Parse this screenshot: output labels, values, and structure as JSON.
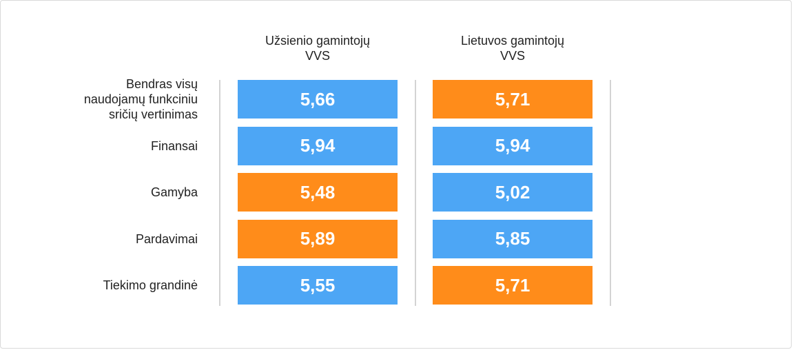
{
  "chart_data": {
    "type": "table",
    "columns": [
      "Užsienio gamintojų\nVVS",
      "Lietuvos gamintojų\nVVS"
    ],
    "rows": [
      {
        "label": "Bendras visų\nnaudojamų funkciniu\nsričių vertinimas",
        "values": [
          "5,66",
          "5,71"
        ],
        "highlight": [
          "blue",
          "orange"
        ]
      },
      {
        "label": "Finansai",
        "values": [
          "5,94",
          "5,94"
        ],
        "highlight": [
          "blue",
          "blue"
        ]
      },
      {
        "label": "Gamyba",
        "values": [
          "5,48",
          "5,02"
        ],
        "highlight": [
          "orange",
          "blue"
        ]
      },
      {
        "label": "Pardavimai",
        "values": [
          "5,89",
          "5,85"
        ],
        "highlight": [
          "orange",
          "blue"
        ]
      },
      {
        "label": "Tiekimo grandinė",
        "values": [
          "5,55",
          "5,71"
        ],
        "highlight": [
          "blue",
          "orange"
        ]
      }
    ]
  },
  "colors": {
    "blue": "#4da6f5",
    "orange": "#ff8c1a"
  }
}
